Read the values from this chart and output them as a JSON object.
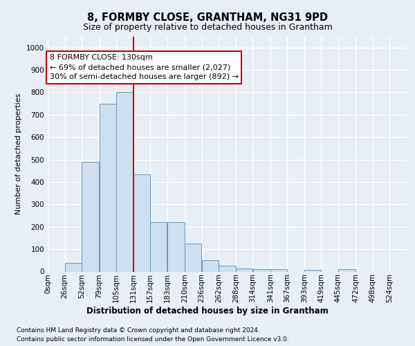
{
  "title1": "8, FORMBY CLOSE, GRANTHAM, NG31 9PD",
  "title2": "Size of property relative to detached houses in Grantham",
  "xlabel": "Distribution of detached houses by size in Grantham",
  "ylabel": "Number of detached properties",
  "footer1": "Contains HM Land Registry data © Crown copyright and database right 2024.",
  "footer2": "Contains public sector information licensed under the Open Government Licence v3.0.",
  "bin_labels": [
    "0sqm",
    "26sqm",
    "52sqm",
    "79sqm",
    "105sqm",
    "131sqm",
    "157sqm",
    "183sqm",
    "210sqm",
    "236sqm",
    "262sqm",
    "288sqm",
    "314sqm",
    "341sqm",
    "367sqm",
    "393sqm",
    "419sqm",
    "445sqm",
    "472sqm",
    "498sqm",
    "524sqm"
  ],
  "bin_edges": [
    0,
    26,
    52,
    79,
    105,
    131,
    157,
    183,
    210,
    236,
    262,
    288,
    314,
    341,
    367,
    393,
    419,
    445,
    472,
    498,
    524
  ],
  "bar_heights": [
    0,
    40,
    490,
    750,
    800,
    435,
    220,
    220,
    125,
    50,
    25,
    15,
    10,
    10,
    0,
    8,
    0,
    10,
    0,
    0,
    0
  ],
  "bar_color": "#cde0f0",
  "bar_edgecolor": "#6699bb",
  "red_line_x": 131,
  "annotation_text1": "8 FORMBY CLOSE: 130sqm",
  "annotation_text2": "← 69% of detached houses are smaller (2,027)",
  "annotation_text3": "30% of semi-detached houses are larger (892) →",
  "annotation_box_facecolor": "#ffffff",
  "annotation_box_edgecolor": "#cc0000",
  "red_line_color": "#cc0000",
  "ylim": [
    0,
    1050
  ],
  "yticks": [
    0,
    100,
    200,
    300,
    400,
    500,
    600,
    700,
    800,
    900,
    1000
  ],
  "background_color": "#e8eef5",
  "grid_color": "#ffffff",
  "title1_fontsize": 10.5,
  "title2_fontsize": 9,
  "annotation_fontsize": 8,
  "ylabel_fontsize": 8,
  "xlabel_fontsize": 8.5,
  "tick_fontsize": 7.5,
  "footer_fontsize": 6.5
}
